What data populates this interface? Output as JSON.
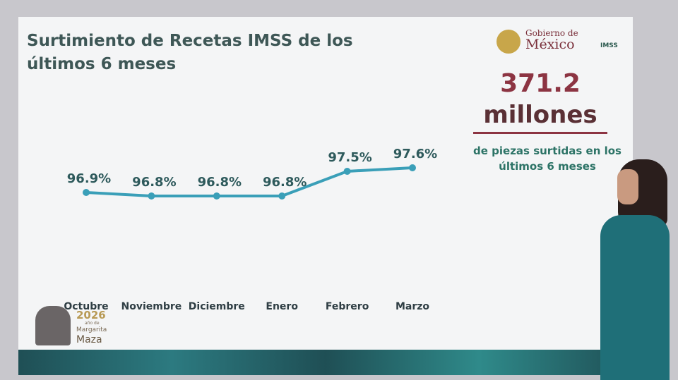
{
  "chart_data": {
    "type": "line",
    "title": "Surtimiento de Recetas IMSS de los últimos 6 meses",
    "categories": [
      "Octubre",
      "Noviembre",
      "Diciembre",
      "Enero",
      "Febrero",
      "Marzo"
    ],
    "values": [
      96.9,
      96.8,
      96.8,
      96.8,
      97.5,
      97.6
    ],
    "value_labels": [
      "96.9%",
      "96.8%",
      "96.8%",
      "96.8%",
      "97.5%",
      "97.6%"
    ],
    "color": "#3a9fb8"
  },
  "callout": {
    "value": "371.2",
    "unit": "millones",
    "caption": "de piezas surtidas en los últimos 6 meses"
  },
  "logo": {
    "line1": "Gobierno de",
    "line2": "México",
    "agency": "IMSS"
  },
  "footer": {
    "year": "2026",
    "line1": "año de",
    "line2": "Margarita",
    "line3": "Maza"
  }
}
